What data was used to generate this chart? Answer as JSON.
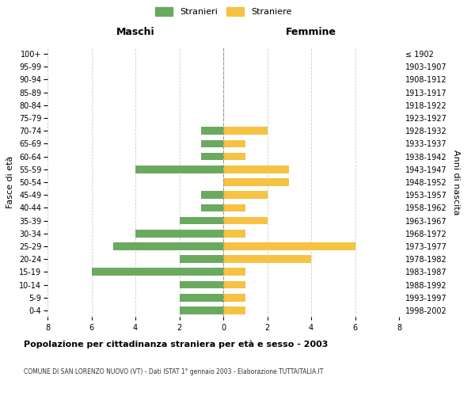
{
  "age_groups": [
    "0-4",
    "5-9",
    "10-14",
    "15-19",
    "20-24",
    "25-29",
    "30-34",
    "35-39",
    "40-44",
    "45-49",
    "50-54",
    "55-59",
    "60-64",
    "65-69",
    "70-74",
    "75-79",
    "80-84",
    "85-89",
    "90-94",
    "95-99",
    "100+"
  ],
  "birth_years": [
    "1998-2002",
    "1993-1997",
    "1988-1992",
    "1983-1987",
    "1978-1982",
    "1973-1977",
    "1968-1972",
    "1963-1967",
    "1958-1962",
    "1953-1957",
    "1948-1952",
    "1943-1947",
    "1938-1942",
    "1933-1937",
    "1928-1932",
    "1923-1927",
    "1918-1922",
    "1913-1917",
    "1908-1912",
    "1903-1907",
    "≤ 1902"
  ],
  "maschi": [
    2,
    2,
    2,
    6,
    2,
    5,
    4,
    2,
    1,
    1,
    0,
    4,
    1,
    1,
    1,
    0,
    0,
    0,
    0,
    0,
    0
  ],
  "femmine": [
    1,
    1,
    1,
    1,
    4,
    6,
    1,
    2,
    1,
    2,
    3,
    3,
    1,
    1,
    2,
    0,
    0,
    0,
    0,
    0,
    0
  ],
  "male_color": "#6aaa5e",
  "female_color": "#f5c242",
  "title": "Popolazione per cittadinanza straniera per età e sesso - 2003",
  "subtitle": "COMUNE DI SAN LORENZO NUOVO (VT) - Dati ISTAT 1° gennaio 2003 - Elaborazione TUTTAITALIA.IT",
  "xlabel_left": "Maschi",
  "xlabel_right": "Femmine",
  "ylabel_left": "Fasce di età",
  "ylabel_right": "Anni di nascita",
  "legend_male": "Stranieri",
  "legend_female": "Straniere",
  "xlim": 8,
  "background_color": "#ffffff",
  "grid_color": "#cccccc"
}
